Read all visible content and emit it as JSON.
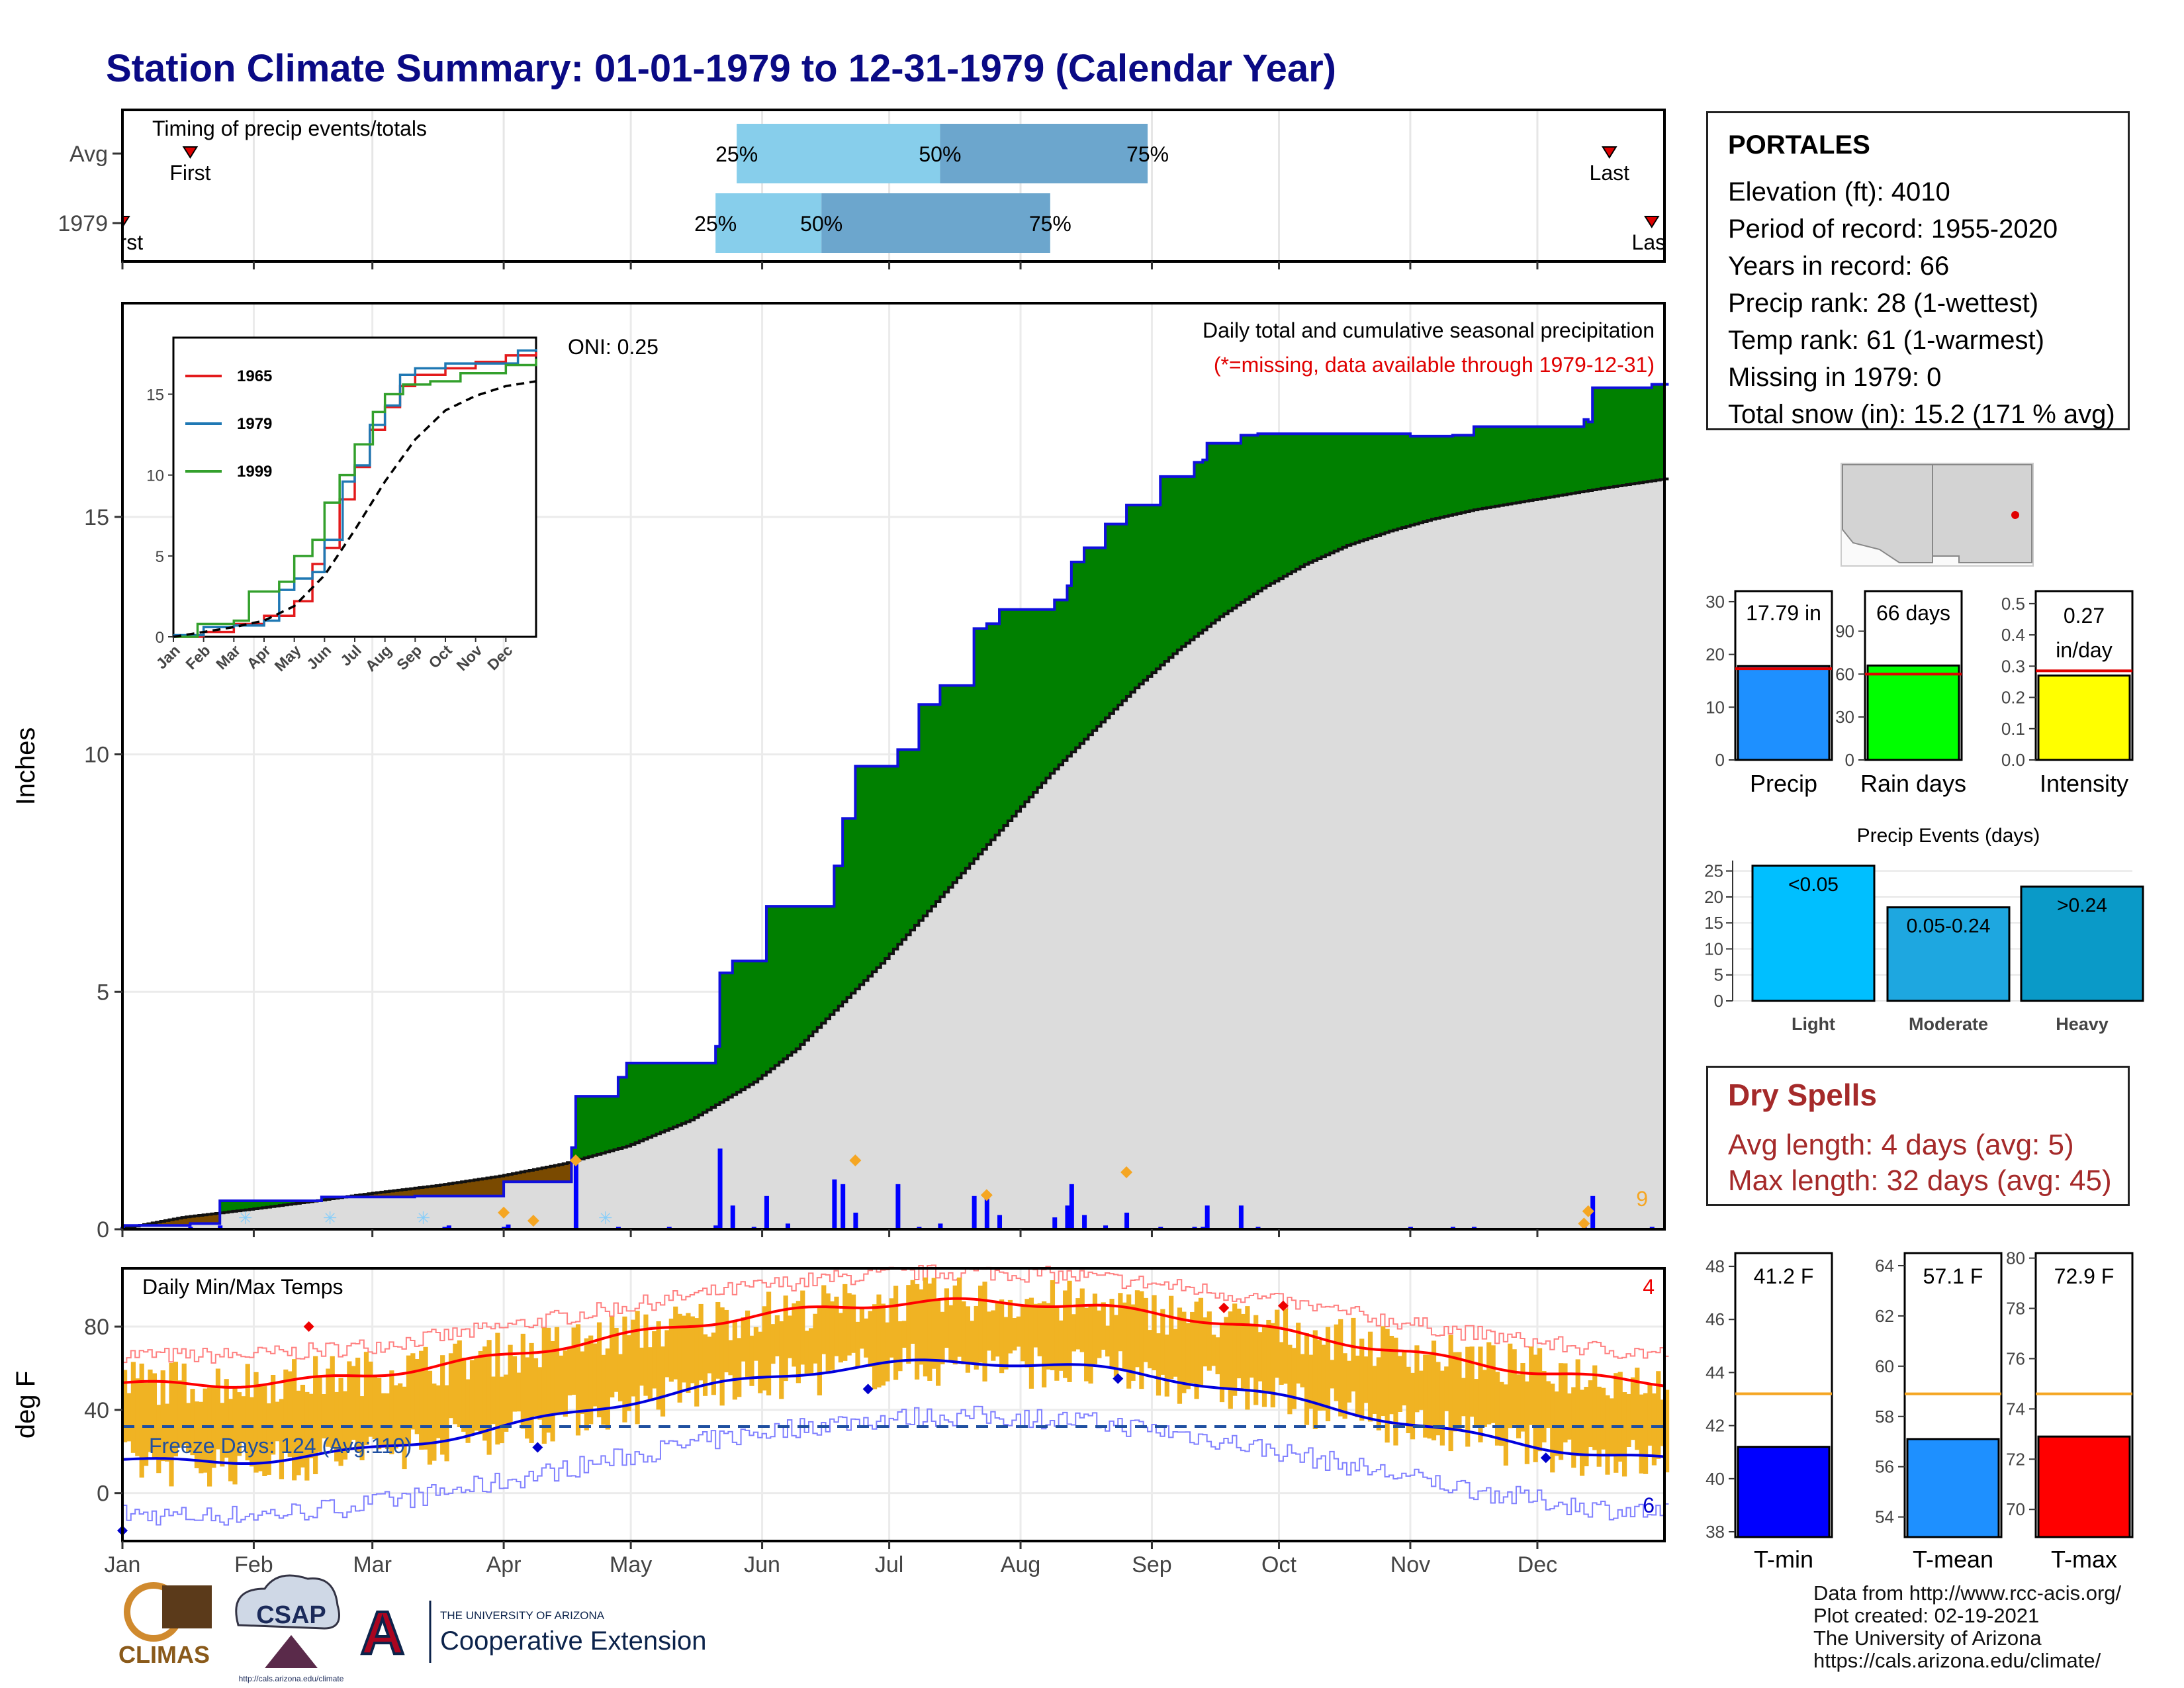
{
  "title": "Station Climate Summary: 01-01-1979 to 12-31-1979 (Calendar Year)",
  "timing": {
    "label": "Timing of precip events/totals",
    "rows": [
      {
        "name": "Avg",
        "first_day": 17,
        "p25_day": 146,
        "p50_day": 194,
        "p75_day": 243,
        "last_day": 352,
        "first_label": "First",
        "last_label": "Last"
      },
      {
        "name": "1979",
        "first_day": 1,
        "p25_day": 141,
        "p50_day": 166,
        "p75_day": 220,
        "last_day": 362,
        "first_label": "First",
        "last_label": "Last"
      }
    ],
    "pct_labels": [
      "25%",
      "50%",
      "75%"
    ]
  },
  "precip": {
    "title": "Daily total and cumulative seasonal precipitation",
    "subtitle": "(*=missing, data available through 1979-12-31)",
    "oni": "ONI: 0.25",
    "ylabel": "Inches",
    "yticks": [
      0,
      5,
      10,
      15
    ],
    "ymax": 19.5,
    "corner_number": "9",
    "cum_1979": [
      [
        1,
        0.08
      ],
      [
        17,
        0.12
      ],
      [
        24,
        0.6
      ],
      [
        48,
        0.68
      ],
      [
        70,
        0.7
      ],
      [
        91,
        1.0
      ],
      [
        107,
        1.72
      ],
      [
        108,
        2.8
      ],
      [
        118,
        3.2
      ],
      [
        120,
        3.5
      ],
      [
        141,
        3.85
      ],
      [
        142,
        5.4
      ],
      [
        145,
        5.65
      ],
      [
        153,
        6.8
      ],
      [
        169,
        7.65
      ],
      [
        171,
        8.65
      ],
      [
        174,
        9.75
      ],
      [
        184,
        10.1
      ],
      [
        189,
        11.05
      ],
      [
        194,
        11.45
      ],
      [
        202,
        12.65
      ],
      [
        205,
        12.75
      ],
      [
        208,
        13.05
      ],
      [
        221,
        13.25
      ],
      [
        224,
        13.55
      ],
      [
        225,
        14.05
      ],
      [
        228,
        14.35
      ],
      [
        233,
        14.85
      ],
      [
        238,
        15.25
      ],
      [
        246,
        15.85
      ],
      [
        254,
        16.15
      ],
      [
        256,
        16.2
      ],
      [
        257,
        16.55
      ],
      [
        265,
        16.72
      ],
      [
        269,
        16.75
      ],
      [
        305,
        16.7
      ],
      [
        315,
        16.72
      ],
      [
        320,
        16.9
      ],
      [
        346,
        16.95
      ],
      [
        346,
        17.05
      ],
      [
        347,
        17.0
      ],
      [
        348,
        17.72
      ],
      [
        362,
        17.79
      ]
    ],
    "avg_cum": [
      [
        0,
        0
      ],
      [
        15,
        0.25
      ],
      [
        31,
        0.42
      ],
      [
        45,
        0.58
      ],
      [
        59,
        0.75
      ],
      [
        75,
        0.92
      ],
      [
        90,
        1.12
      ],
      [
        105,
        1.38
      ],
      [
        120,
        1.75
      ],
      [
        135,
        2.3
      ],
      [
        150,
        3.1
      ],
      [
        160,
        3.8
      ],
      [
        170,
        4.7
      ],
      [
        180,
        5.6
      ],
      [
        190,
        6.6
      ],
      [
        200,
        7.6
      ],
      [
        210,
        8.6
      ],
      [
        220,
        9.6
      ],
      [
        230,
        10.5
      ],
      [
        240,
        11.4
      ],
      [
        250,
        12.2
      ],
      [
        260,
        12.9
      ],
      [
        270,
        13.5
      ],
      [
        280,
        14.0
      ],
      [
        290,
        14.4
      ],
      [
        300,
        14.7
      ],
      [
        310,
        14.95
      ],
      [
        320,
        15.15
      ],
      [
        330,
        15.3
      ],
      [
        340,
        15.45
      ],
      [
        350,
        15.6
      ],
      [
        365,
        15.8
      ]
    ],
    "daily": [
      [
        1,
        0.05
      ],
      [
        17,
        0.05
      ],
      [
        24,
        0.08
      ],
      [
        77,
        0.05
      ],
      [
        78,
        0.08
      ],
      [
        91,
        0.05
      ],
      [
        92,
        0.1
      ],
      [
        108,
        1.45
      ],
      [
        118,
        0.05
      ],
      [
        130,
        0.05
      ],
      [
        141,
        0.08
      ],
      [
        142,
        1.7
      ],
      [
        145,
        0.5
      ],
      [
        150,
        0.05
      ],
      [
        153,
        0.7
      ],
      [
        158,
        0.12
      ],
      [
        169,
        1.05
      ],
      [
        171,
        0.95
      ],
      [
        174,
        0.35
      ],
      [
        184,
        0.95
      ],
      [
        189,
        0.05
      ],
      [
        194,
        0.12
      ],
      [
        202,
        0.7
      ],
      [
        205,
        0.7
      ],
      [
        208,
        0.3
      ],
      [
        221,
        0.25
      ],
      [
        224,
        0.5
      ],
      [
        225,
        0.95
      ],
      [
        228,
        0.3
      ],
      [
        233,
        0.08
      ],
      [
        238,
        0.35
      ],
      [
        246,
        0.05
      ],
      [
        254,
        0.05
      ],
      [
        256,
        0.05
      ],
      [
        257,
        0.5
      ],
      [
        265,
        0.5
      ],
      [
        269,
        0.05
      ],
      [
        305,
        0.05
      ],
      [
        315,
        0.05
      ],
      [
        320,
        0.05
      ],
      [
        346,
        0.05
      ],
      [
        348,
        0.7
      ],
      [
        362,
        0.05
      ]
    ],
    "orange_markers": [
      [
        91,
        0.35
      ],
      [
        98,
        0.18
      ],
      [
        108,
        1.45
      ],
      [
        174,
        1.45
      ],
      [
        205,
        0.72
      ],
      [
        238,
        1.2
      ],
      [
        346,
        0.12
      ],
      [
        347,
        0.38
      ]
    ]
  },
  "inset": {
    "series": [
      {
        "name": "1965",
        "color": "#e31a1c"
      },
      {
        "name": "1979",
        "color": "#1f78b4"
      },
      {
        "name": "1999",
        "color": "#33a02c"
      }
    ],
    "yticks": [
      0,
      5,
      10,
      15
    ],
    "months": [
      "Jan",
      "Feb",
      "Mar",
      "Apr",
      "May",
      "Jun",
      "Jul",
      "Aug",
      "Sep",
      "Oct",
      "Nov",
      "Dec"
    ]
  },
  "temps": {
    "label": "Daily Min/Max Temps",
    "ylabel": "deg F",
    "yticks": [
      0,
      40,
      80
    ],
    "freeze_label": "Freeze Days: 124 (Avg:110)",
    "corner_top": "4",
    "corner_bottom": "6",
    "freeze_line": 32
  },
  "months": [
    "Jan",
    "Feb",
    "Mar",
    "Apr",
    "May",
    "Jun",
    "Jul",
    "Aug",
    "Sep",
    "Oct",
    "Nov",
    "Dec"
  ],
  "station": {
    "name": "PORTALES",
    "lines": [
      "Elevation (ft): 4010",
      "Period of record: 1955-2020",
      "Years in record: 66",
      "Precip rank: 28 (1-wettest)",
      "Temp rank: 61 (1-warmest)",
      "Missing in 1979: 0",
      "Total snow (in): 15.2 (171 % avg)"
    ]
  },
  "summary_bars": [
    {
      "name": "Precip",
      "label": "17.79 in",
      "value": 17.79,
      "avg": 17.3,
      "ymax": 32,
      "ticks": [
        "0",
        "10",
        "20",
        "30"
      ],
      "tickvals": [
        0,
        10,
        20,
        30
      ],
      "color": "#1e90ff"
    },
    {
      "name": "Rain days",
      "label": "66 days",
      "value": 66,
      "avg": 60,
      "ymax": 118,
      "ticks": [
        "0",
        "30",
        "60",
        "90"
      ],
      "tickvals": [
        0,
        30,
        60,
        90
      ],
      "color": "#00ff00"
    },
    {
      "name": "Intensity",
      "label1": "0.27",
      "label2": "in/day",
      "value": 0.27,
      "avg": 0.285,
      "ymax": 0.54,
      "ticks": [
        "0.0",
        "0.1",
        "0.2",
        "0.3",
        "0.4",
        "0.5"
      ],
      "tickvals": [
        0,
        0.1,
        0.2,
        0.3,
        0.4,
        0.5
      ],
      "color": "#ffff00"
    }
  ],
  "precip_events": {
    "title": "Precip Events (days)",
    "ymax": 27,
    "yticks": [
      0,
      5,
      10,
      15,
      20,
      25
    ],
    "bars": [
      {
        "name": "Light",
        "label": "<0.05",
        "value": 26,
        "color": "#00bfff"
      },
      {
        "name": "Moderate",
        "label": "0.05-0.24",
        "value": 18,
        "color": "#1ea7e0"
      },
      {
        "name": "Heavy",
        "label": ">0.24",
        "value": 22,
        "color": "#0a9ac8"
      }
    ]
  },
  "dry_spells": {
    "title": "Dry Spells",
    "avg_line": "Avg length: 4 days (avg: 5)",
    "max_line": "Max length: 32 days (avg: 45)"
  },
  "temp_bars": [
    {
      "name": "T-min",
      "label": "41.2 F",
      "value": 41.2,
      "avg": 43.2,
      "ymin": 37.8,
      "ymax": 48.5,
      "ticks": [
        38,
        40,
        42,
        44,
        46,
        48
      ],
      "color": "#0000ff"
    },
    {
      "name": "T-mean",
      "label": "57.1 F",
      "value": 57.1,
      "avg": 58.9,
      "ymin": 53.2,
      "ymax": 64.5,
      "ticks": [
        54,
        56,
        58,
        60,
        62,
        64
      ],
      "color": "#1e90ff"
    },
    {
      "name": "T-max",
      "label": "72.9 F",
      "value": 72.9,
      "avg": 74.6,
      "ymin": 68.9,
      "ymax": 80.2,
      "ticks": [
        70,
        72,
        74,
        76,
        78,
        80
      ],
      "color": "#ff0000"
    }
  ],
  "logos": {
    "climas": "CLIMAS",
    "csap": "CSAP",
    "csap_url": "http://cals.arizona.edu/climate",
    "ua_small": "THE UNIVERSITY OF ARIZONA",
    "ua_big": "Cooperative Extension"
  },
  "credits": [
    "Data from http://www.rcc-acis.org/",
    "Plot created: 02-19-2021",
    "The University of Arizona",
    "https://cals.arizona.edu/climate/"
  ]
}
